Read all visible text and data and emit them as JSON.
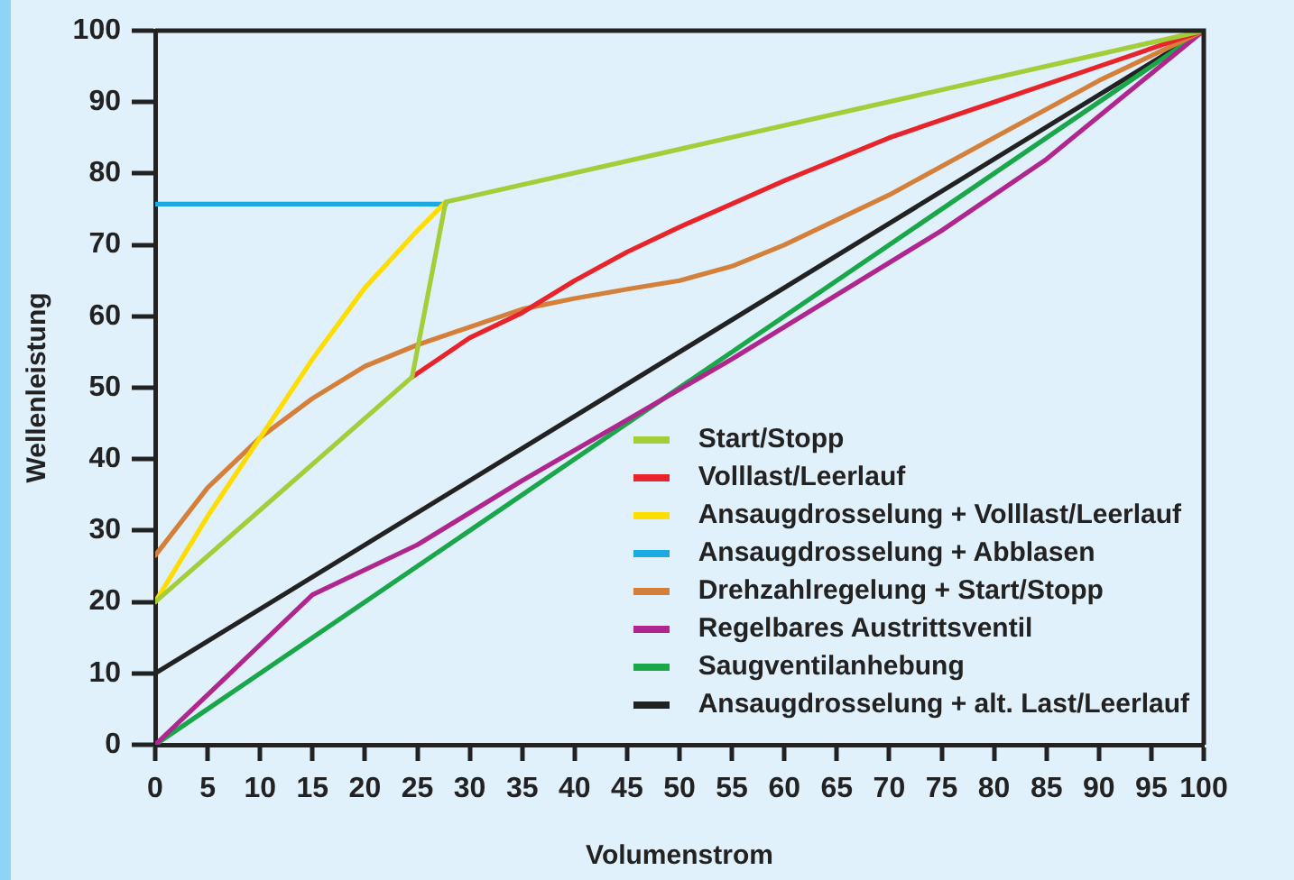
{
  "chart_data": {
    "type": "line",
    "xlabel": "Volumenstrom",
    "ylabel": "Wellenleistung",
    "xlim": [
      0,
      100
    ],
    "ylim": [
      0,
      100
    ],
    "xticks": [
      0,
      5,
      10,
      15,
      20,
      25,
      30,
      35,
      40,
      45,
      50,
      55,
      60,
      65,
      70,
      75,
      80,
      85,
      90,
      95,
      100
    ],
    "yticks": [
      0,
      10,
      20,
      30,
      40,
      50,
      60,
      70,
      80,
      90,
      100
    ],
    "grid": false,
    "legend": "bottom right",
    "marker": "none",
    "line_style": "solid",
    "series": [
      {
        "name": "Start/Stopp",
        "color": "#a3cd39",
        "x": [
          0,
          24.5,
          27.7,
          100
        ],
        "values": [
          20,
          51.5,
          76,
          100
        ]
      },
      {
        "name": "Volllast/Leerlauf",
        "color": "#e8232a",
        "x": [
          24.5,
          30,
          35,
          40,
          45,
          50,
          60,
          70,
          80,
          90,
          100
        ],
        "values": [
          51.5,
          57,
          60.5,
          65,
          69,
          72.5,
          79,
          85,
          90,
          95,
          100
        ]
      },
      {
        "name": "Ansaugdrosselung + Volllast/Leerlauf",
        "color": "#ffdd00",
        "x": [
          0,
          5,
          10,
          15,
          20,
          25,
          27.7
        ],
        "values": [
          20,
          32,
          43,
          54,
          64,
          72,
          76
        ]
      },
      {
        "name": "Ansaugdrosselung + Abblasen",
        "color": "#1ba9e1",
        "x": [
          0,
          27.7
        ],
        "values": [
          75.7,
          75.7
        ]
      },
      {
        "name": "Drehzahlregelung + Start/Stopp",
        "color": "#d4803a",
        "x": [
          0,
          5,
          10,
          15,
          20,
          25,
          30,
          35,
          40,
          45,
          50,
          55,
          60,
          70,
          80,
          90,
          100
        ],
        "values": [
          26.5,
          36,
          43,
          48.5,
          53,
          56,
          58.5,
          61,
          62.5,
          63.8,
          65,
          67,
          70,
          77,
          85,
          93,
          100
        ]
      },
      {
        "name": "Regelbares Austrittsventil",
        "color": "#b0268f",
        "x": [
          0,
          15,
          25,
          35,
          45,
          55,
          65,
          75,
          85,
          100
        ],
        "values": [
          0,
          21,
          28,
          37,
          45.5,
          54,
          63,
          72,
          82,
          100
        ]
      },
      {
        "name": "Saugventilanhebung",
        "color": "#1aa74a",
        "x": [
          0,
          100
        ],
        "values": [
          0,
          100
        ]
      },
      {
        "name": "Ansaugdrosselung + alt. Last/Leerlauf",
        "color": "#222222",
        "x": [
          0,
          100
        ],
        "values": [
          10,
          100
        ]
      }
    ]
  }
}
